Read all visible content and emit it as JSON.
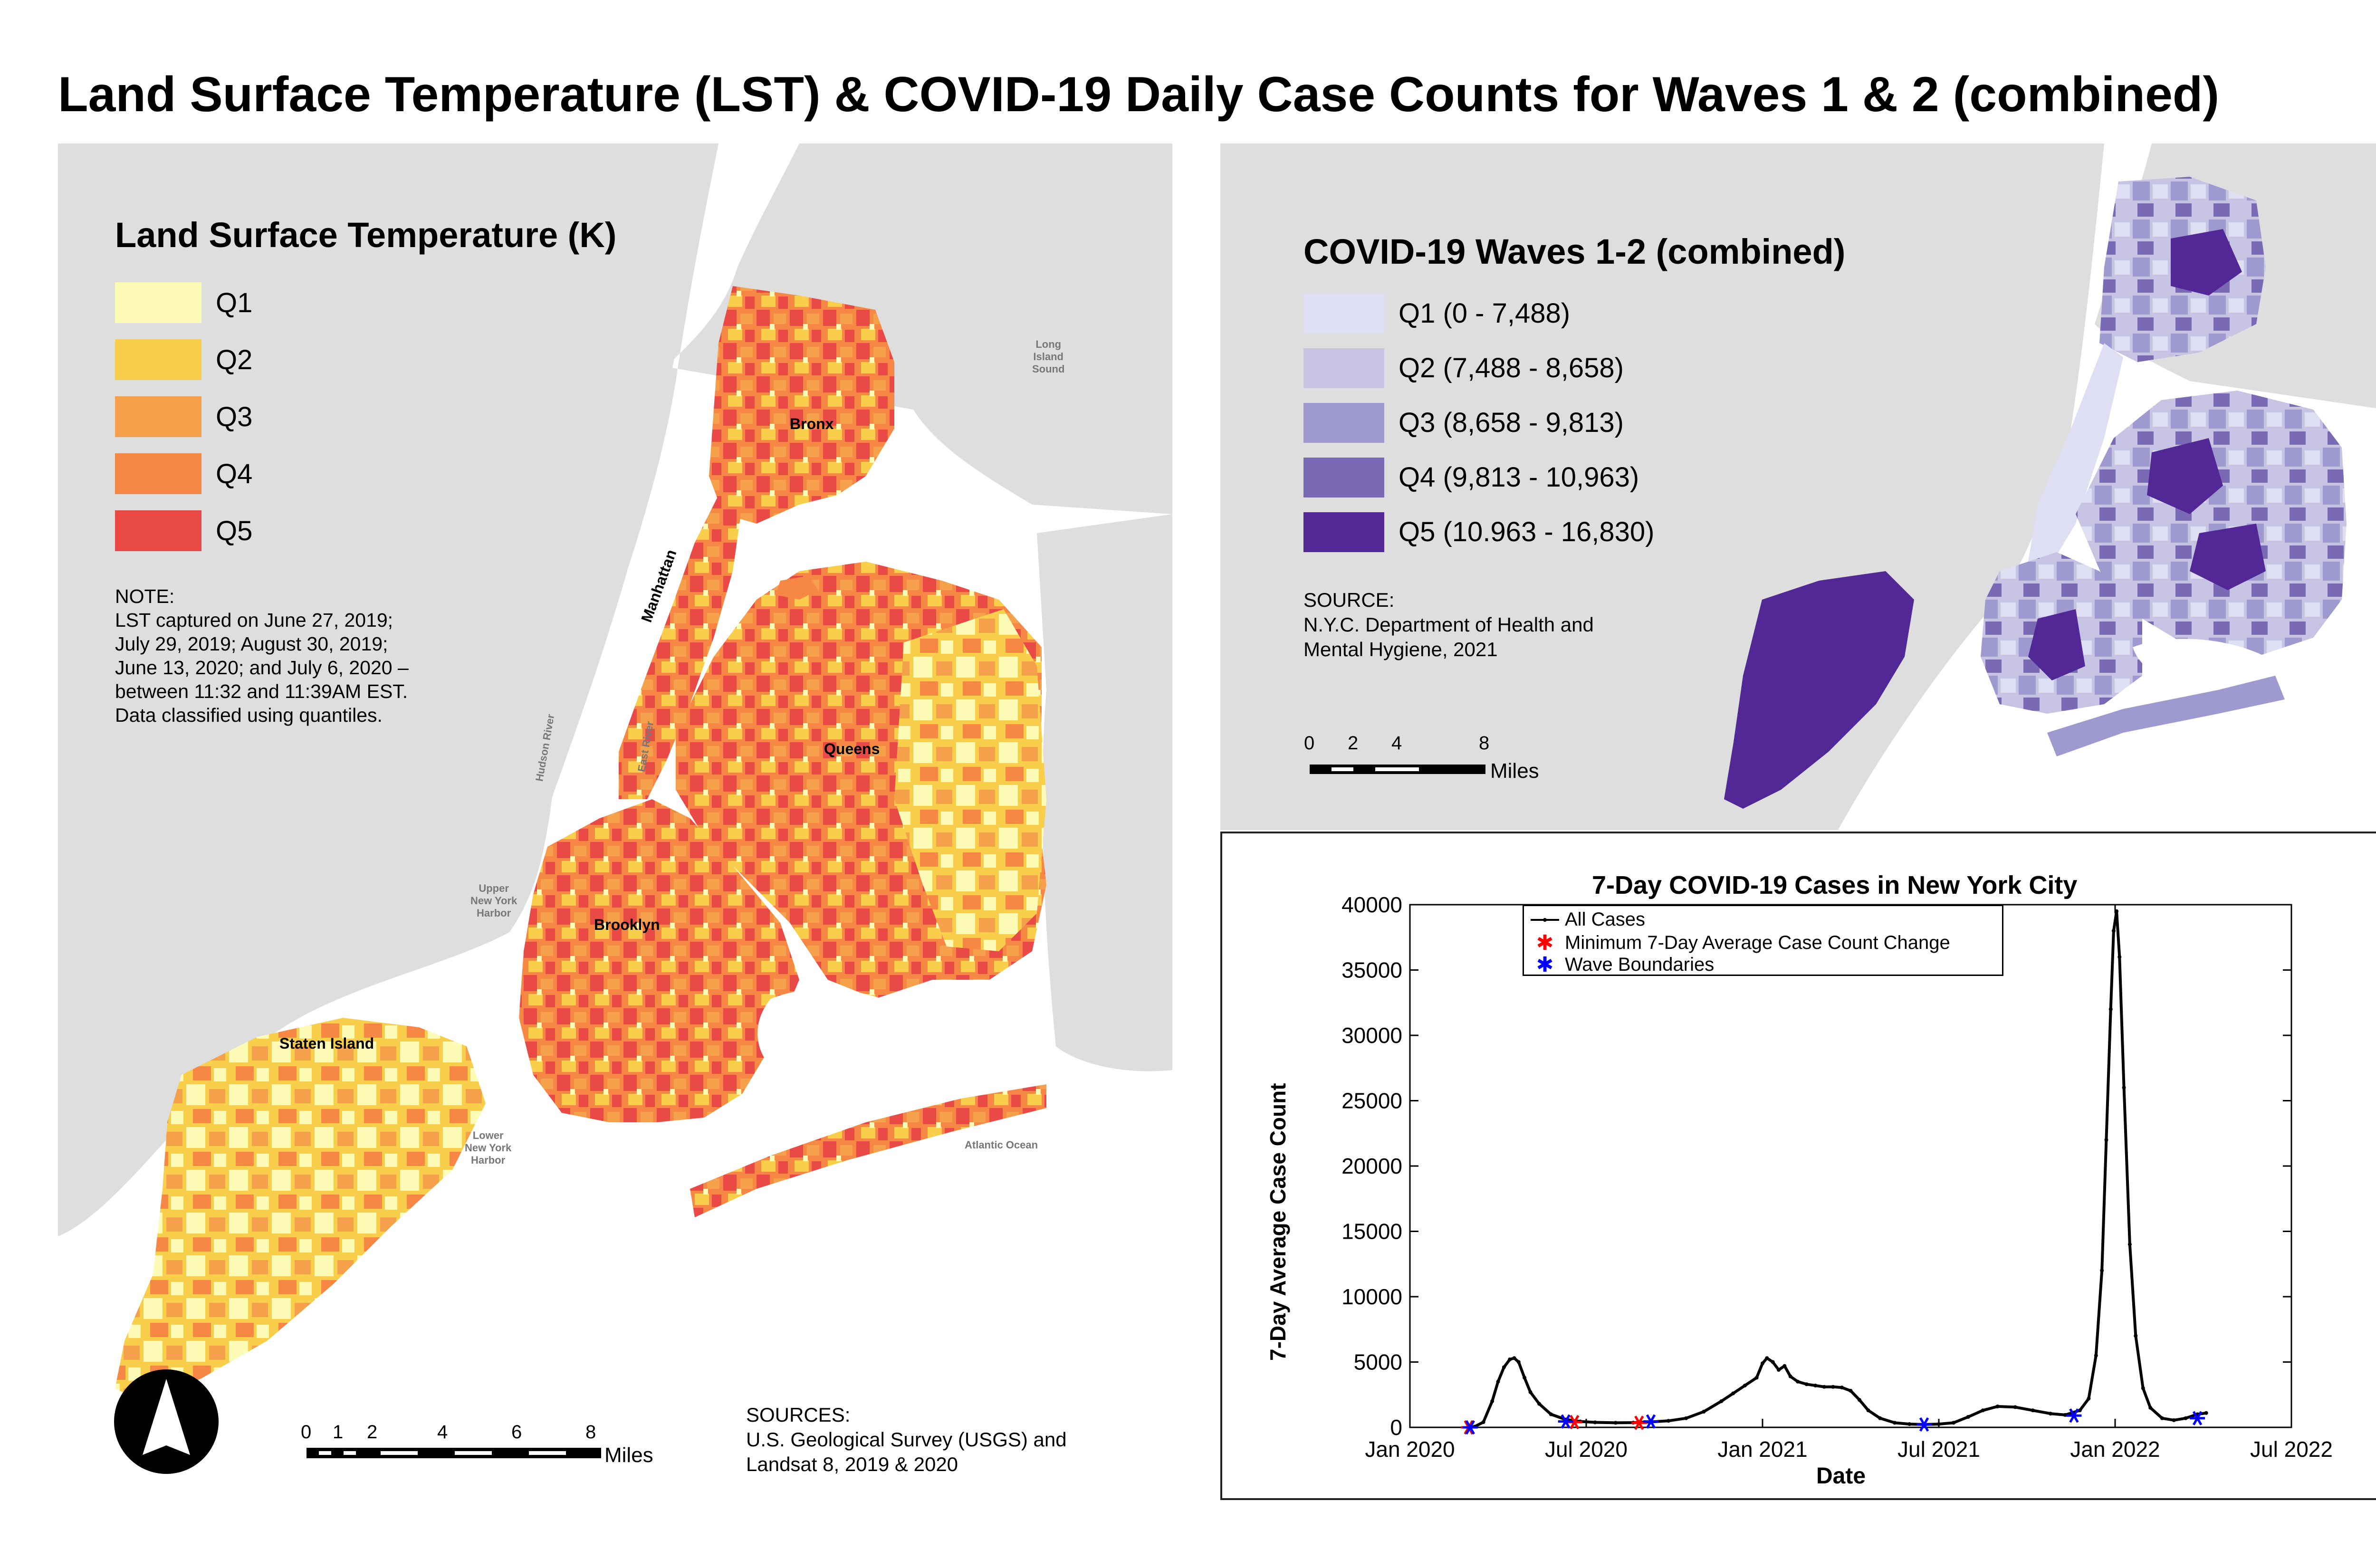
{
  "title": "Land Surface Temperature (LST) & COVID-19 Daily Case Counts for Waves 1 & 2 (combined)",
  "lst_map": {
    "legend_title": "Land Surface Temperature (K)",
    "classes": [
      {
        "label": "Q1",
        "color": "#fdfbb5"
      },
      {
        "label": "Q2",
        "color": "#f8ce4b"
      },
      {
        "label": "Q3",
        "color": "#f5a04b"
      },
      {
        "label": "Q4",
        "color": "#f78745"
      },
      {
        "label": "Q5",
        "color": "#ea4a46"
      }
    ],
    "note": "NOTE:\nLST captured on June 27, 2019;\nJuly 29, 2019; August 30, 2019;\nJune 13, 2020; and July 6, 2020 –\nbetween 11:32 and 11:39AM EST.\nData classified using quantiles.",
    "labels": {
      "bronx": "Bronx",
      "manhattan": "Manhattan",
      "queens": "Queens",
      "brooklyn": "Brooklyn",
      "staten_island": "Staten Island",
      "long_island_sound": "Long\nIsland\nSound",
      "hudson_river": "Hudson River",
      "east_river": "East River",
      "upper_harbor": "Upper\nNew York\nHarbor",
      "lower_harbor": "Lower\nNew York\nHarbor",
      "atlantic_ocean": "Atlantic Ocean"
    },
    "scale_ticks": [
      "0",
      "1",
      "2",
      "4",
      "6",
      "8"
    ],
    "scale_unit": "Miles",
    "sources": "SOURCES:\nU.S. Geological Survey (USGS) and\nLandsat 8, 2019 & 2020"
  },
  "covid_map": {
    "legend_title": "COVID-19 Waves 1-2 (combined)",
    "classes": [
      {
        "label": "Q1 (0 - 7,488)",
        "color": "#dfdff3"
      },
      {
        "label": "Q2 (7,488 - 8,658)",
        "color": "#c6c4e2"
      },
      {
        "label": "Q3 (8,658 - 9,813)",
        "color": "#9e9ad0"
      },
      {
        "label": "Q4 (9,813 - 10,963)",
        "color": "#7a6ab6"
      },
      {
        "label": "Q5 (10.963 - 16,830)",
        "color": "#512895"
      }
    ],
    "source": "SOURCE:\nN.Y.C. Department of Health and\nMental Hygiene, 2021",
    "scale_ticks": [
      "0",
      "2",
      "4",
      "8"
    ],
    "scale_unit": "Miles"
  },
  "chart_data": {
    "type": "line",
    "title": "7-Day COVID-19 Cases in New York City",
    "xlabel": "Date",
    "ylabel": "7-Day Average Case Count",
    "ylim": [
      0,
      40000
    ],
    "y_ticks": [
      0,
      5000,
      10000,
      15000,
      20000,
      25000,
      30000,
      35000,
      40000
    ],
    "xlim_months_since_jan2020": [
      0,
      30
    ],
    "x_ticks": [
      {
        "label": "Jan 2020",
        "month": 0
      },
      {
        "label": "Jul 2020",
        "month": 6
      },
      {
        "label": "Jan 2021",
        "month": 12
      },
      {
        "label": "Jul 2021",
        "month": 18
      },
      {
        "label": "Jan 2022",
        "month": 24
      },
      {
        "label": "Jul 2022",
        "month": 30
      }
    ],
    "legend": [
      "All Cases",
      "Minimum 7-Day Average Case Count Change",
      "Wave Boundaries"
    ],
    "series": [
      {
        "name": "All Cases",
        "points": [
          [
            2.0,
            0
          ],
          [
            2.2,
            50
          ],
          [
            2.5,
            400
          ],
          [
            2.8,
            2000
          ],
          [
            3.0,
            3500
          ],
          [
            3.2,
            4600
          ],
          [
            3.4,
            5200
          ],
          [
            3.55,
            5300
          ],
          [
            3.7,
            5000
          ],
          [
            3.9,
            3800
          ],
          [
            4.1,
            2700
          ],
          [
            4.4,
            1800
          ],
          [
            4.8,
            1000
          ],
          [
            5.3,
            600
          ],
          [
            5.8,
            450
          ],
          [
            6.3,
            380
          ],
          [
            7.0,
            350
          ],
          [
            7.6,
            360
          ],
          [
            8.2,
            420
          ],
          [
            8.8,
            500
          ],
          [
            9.4,
            700
          ],
          [
            10.0,
            1200
          ],
          [
            10.6,
            2000
          ],
          [
            11.0,
            2600
          ],
          [
            11.4,
            3200
          ],
          [
            11.8,
            3800
          ],
          [
            12.0,
            4900
          ],
          [
            12.15,
            5300
          ],
          [
            12.35,
            5000
          ],
          [
            12.55,
            4400
          ],
          [
            12.75,
            4700
          ],
          [
            12.95,
            3900
          ],
          [
            13.2,
            3500
          ],
          [
            13.5,
            3300
          ],
          [
            13.8,
            3200
          ],
          [
            14.1,
            3100
          ],
          [
            14.4,
            3100
          ],
          [
            14.7,
            3050
          ],
          [
            15.0,
            2800
          ],
          [
            15.3,
            2100
          ],
          [
            15.6,
            1300
          ],
          [
            16.0,
            700
          ],
          [
            16.5,
            350
          ],
          [
            17.0,
            250
          ],
          [
            17.5,
            220
          ],
          [
            18.0,
            250
          ],
          [
            18.5,
            350
          ],
          [
            19.0,
            800
          ],
          [
            19.5,
            1300
          ],
          [
            20.0,
            1600
          ],
          [
            20.6,
            1550
          ],
          [
            21.2,
            1300
          ],
          [
            21.8,
            1050
          ],
          [
            22.3,
            950
          ],
          [
            22.8,
            1300
          ],
          [
            23.1,
            2200
          ],
          [
            23.35,
            5500
          ],
          [
            23.55,
            12000
          ],
          [
            23.7,
            22000
          ],
          [
            23.85,
            32000
          ],
          [
            23.95,
            38000
          ],
          [
            24.05,
            39500
          ],
          [
            24.15,
            36000
          ],
          [
            24.3,
            26000
          ],
          [
            24.5,
            14000
          ],
          [
            24.7,
            7000
          ],
          [
            24.95,
            3000
          ],
          [
            25.2,
            1500
          ],
          [
            25.6,
            700
          ],
          [
            26.0,
            550
          ],
          [
            26.4,
            700
          ],
          [
            26.8,
            1000
          ],
          [
            27.1,
            1100
          ]
        ]
      }
    ],
    "min_change_points": [
      [
        2.0,
        0
      ],
      [
        5.6,
        400
      ],
      [
        7.8,
        350
      ]
    ],
    "wave_boundaries": [
      [
        2.05,
        0
      ],
      [
        5.3,
        450
      ],
      [
        8.2,
        450
      ],
      [
        17.5,
        220
      ],
      [
        22.6,
        900
      ],
      [
        26.8,
        700
      ]
    ]
  }
}
